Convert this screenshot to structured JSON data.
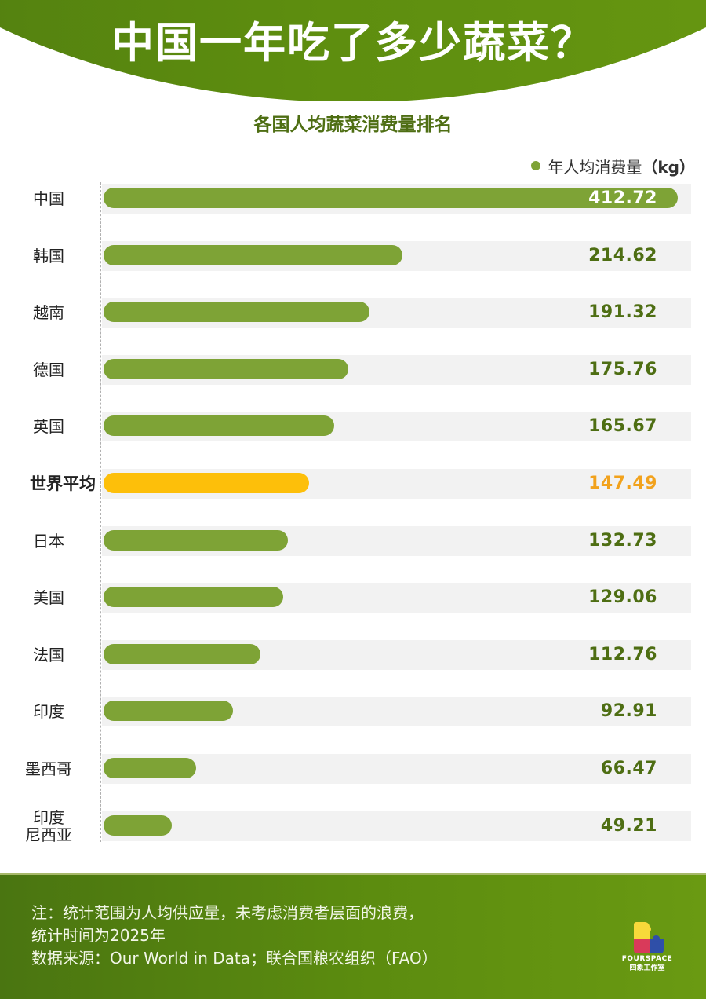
{
  "header": {
    "title": "中国一年吃了多少蔬菜？"
  },
  "chart": {
    "subtitle": "各国人均蔬菜消费量排名",
    "legend": {
      "label": "年人均消费量",
      "unit": "（kg）",
      "color": "#7ea336"
    }
  },
  "rows": [
    {
      "label": "中国",
      "value": "412.72"
    },
    {
      "label": "韩国",
      "value": "214.62"
    },
    {
      "label": "越南",
      "value": "191.32"
    },
    {
      "label": "德国",
      "value": "175.76"
    },
    {
      "label": "英国",
      "value": "165.67"
    },
    {
      "label": "世界平均",
      "value": "147.49"
    },
    {
      "label": "日本",
      "value": "132.73"
    },
    {
      "label": "美国",
      "value": "129.06"
    },
    {
      "label": "法国",
      "value": "112.76"
    },
    {
      "label": "印度",
      "value": "92.91"
    },
    {
      "label": "墨西哥",
      "value": "66.47"
    },
    {
      "label": "印度\n尼西亚",
      "value": "49.21"
    }
  ],
  "footer": {
    "note_line1": "注：统计范围为人均供应量，未考虑消费者层面的浪费，",
    "note_line2": "统计时间为2025年",
    "source": "数据来源：Our World in Data；联合国粮农组织（FAO）",
    "logo_text": "FOURSPACE",
    "logo_sub": "四象工作室"
  },
  "colors": {
    "bar": "#7ea336",
    "highlight_bar": "#fdbf0a",
    "highlight_value": "#f2a21c",
    "value_text": "#4e6e13",
    "track": "#f2f2f2",
    "header_green": "#5d8d0f"
  },
  "chart_data": {
    "type": "bar",
    "orientation": "horizontal",
    "title": "中国一年吃了多少蔬菜？",
    "subtitle": "各国人均蔬菜消费量排名",
    "categories": [
      "中国",
      "韩国",
      "越南",
      "德国",
      "英国",
      "世界平均",
      "日本",
      "美国",
      "法国",
      "印度",
      "墨西哥",
      "印度尼西亚"
    ],
    "series": [
      {
        "name": "年人均消费量（kg）",
        "values": [
          412.72,
          214.62,
          191.32,
          175.76,
          165.67,
          147.49,
          132.73,
          129.06,
          112.76,
          92.91,
          66.47,
          49.21
        ]
      }
    ],
    "highlight": "世界平均",
    "xlabel": "",
    "ylabel": "",
    "unit": "kg",
    "legend_position": "top-right",
    "grid": false,
    "data_labels": true,
    "notes": "注：统计范围为人均供应量，未考虑消费者层面的浪费，统计时间为2025年",
    "source": "数据来源：Our World in Data；联合国粮农组织（FAO）"
  }
}
